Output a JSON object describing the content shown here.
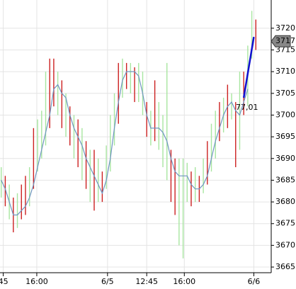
{
  "chart_data": {
    "type": "range-bar",
    "xlim": [
      -0.3,
      66.8
    ],
    "ylim": [
      3663.7,
      3726.5
    ],
    "yticks": [
      3665,
      3670,
      3675,
      3680,
      3685,
      3690,
      3695,
      3700,
      3705,
      3710,
      3715,
      3720
    ],
    "xticks": [
      {
        "value": 0.5,
        "label": "45"
      },
      {
        "value": 8.8,
        "label": "16:00"
      },
      {
        "value": 26.3,
        "label": "6/5"
      },
      {
        "value": 36,
        "label": "12:45"
      },
      {
        "value": 45.3,
        "label": "16:00"
      },
      {
        "value": 62.5,
        "label": "6/6"
      }
    ],
    "grid": true,
    "series": [
      {
        "color": "#a8e6a0",
        "x": [
          0,
          2,
          4,
          7,
          9,
          10,
          11,
          14,
          16,
          18,
          20,
          22,
          24,
          26,
          27,
          28,
          30,
          32,
          34,
          35,
          37,
          39,
          40,
          41,
          44,
          45,
          46,
          48,
          50,
          52,
          53,
          55,
          57,
          59,
          61,
          62
        ],
        "low": [
          3681,
          3676,
          3674,
          3679,
          3687,
          3690,
          3693,
          3700,
          3695,
          3690,
          3685,
          3680,
          3680,
          3683,
          3687,
          3693,
          3704,
          3705,
          3703,
          3700,
          3693,
          3692,
          3688,
          3685,
          3670,
          3667,
          3680,
          3680,
          3682,
          3687,
          3690,
          3696,
          3699,
          3692,
          3702,
          3713
        ],
        "high": [
          3688,
          3684,
          3682,
          3688,
          3699,
          3701,
          3710,
          3710,
          3705,
          3700,
          3697,
          3692,
          3690,
          3693,
          3700,
          3705,
          3713,
          3712,
          3712,
          3710,
          3701,
          3703,
          3700,
          3712,
          3690,
          3690,
          3689,
          3688,
          3690,
          3698,
          3701,
          3704,
          3705,
          3710,
          3716,
          3724
        ]
      },
      {
        "color": "#cc2020",
        "x": [
          1,
          3,
          5,
          6,
          8,
          12,
          13,
          15,
          17,
          19,
          21,
          23,
          25,
          29,
          31,
          33,
          36,
          38,
          42,
          43,
          47,
          49,
          51,
          54,
          56,
          58,
          60,
          63
        ],
        "low": [
          3679,
          3673,
          3676,
          3677,
          3683,
          3697,
          3702,
          3697,
          3693,
          3688,
          3683,
          3678,
          3680,
          3698,
          3706,
          3703,
          3695,
          3694,
          3680,
          3677,
          3679,
          3680,
          3684,
          3694,
          3697,
          3688,
          3700,
          3715
        ],
        "high": [
          3686,
          3681,
          3684,
          3686,
          3697,
          3713,
          3713,
          3708,
          3702,
          3699,
          3694,
          3692,
          3687,
          3712,
          3712,
          3711,
          3703,
          3708,
          3692,
          3690,
          3687,
          3686,
          3694,
          3703,
          3707,
          3703,
          3710,
          3722
        ]
      }
    ],
    "moving_average": {
      "color": "#6f95c0",
      "values": [
        3685,
        3683,
        3680,
        3677,
        3677,
        3678,
        3679,
        3681,
        3684,
        3688,
        3692,
        3696,
        3700,
        3706,
        3707,
        3705,
        3704,
        3700,
        3697,
        3695,
        3693,
        3690,
        3688,
        3686,
        3684,
        3682,
        3685,
        3690,
        3697,
        3703,
        3708,
        3710,
        3710,
        3710,
        3709,
        3705,
        3700,
        3697,
        3697,
        3697,
        3696,
        3694,
        3690,
        3687,
        3686,
        3686,
        3686,
        3684,
        3683,
        3683,
        3684,
        3686,
        3690,
        3694,
        3697,
        3700,
        3702,
        3703,
        3701,
        3700,
        3703,
        3706
      ]
    },
    "trendline": {
      "color": "#1010d0",
      "x": [
        60,
        62.5
      ],
      "values": [
        3704,
        3718
      ]
    },
    "annotation": "77,01",
    "last_price": 3717
  }
}
